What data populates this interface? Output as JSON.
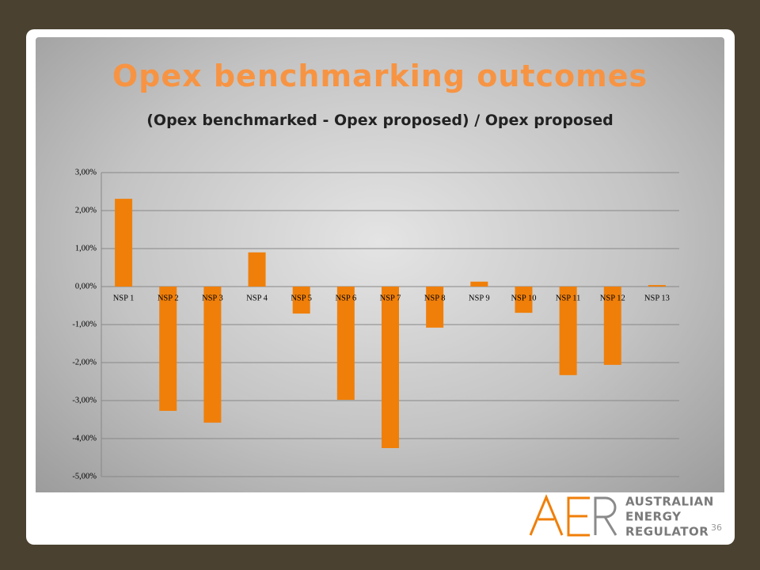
{
  "slide_title": "Opex benchmarking outcomes",
  "page_number": "36",
  "logo": {
    "lines": [
      "AUSTRALIAN",
      "ENERGY",
      "REGULATOR"
    ]
  },
  "chart_data": {
    "type": "bar",
    "title": "(Opex benchmarked - Opex proposed) / Opex proposed",
    "categories": [
      "NSP 1",
      "NSP 2",
      "NSP 3",
      "NSP 4",
      "NSP 5",
      "NSP 6",
      "NSP 7",
      "NSP 8",
      "NSP 9",
      "NSP 10",
      "NSP 11",
      "NSP 12",
      "NSP 13"
    ],
    "values": [
      2.31,
      -3.27,
      -3.58,
      0.9,
      -0.71,
      -2.98,
      -4.25,
      -1.08,
      0.13,
      -0.69,
      -2.33,
      -2.06,
      0.04
    ],
    "color": "#f07f09",
    "ylim": [
      -5,
      3
    ],
    "yticks": [
      {
        "value": 3,
        "label": "3,00%"
      },
      {
        "value": 2,
        "label": "2,00%"
      },
      {
        "value": 1,
        "label": "1,00%"
      },
      {
        "value": 0,
        "label": "0,00%"
      },
      {
        "value": -1,
        "label": "-1,00%"
      },
      {
        "value": -2,
        "label": "-2,00%"
      },
      {
        "value": -3,
        "label": "-3,00%"
      },
      {
        "value": -4,
        "label": "-4,00%"
      },
      {
        "value": -5,
        "label": "-5,00%"
      }
    ],
    "grid": true
  }
}
